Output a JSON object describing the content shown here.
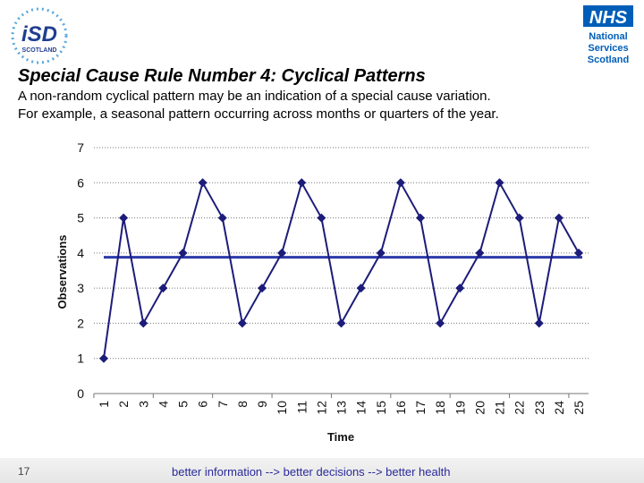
{
  "header": {
    "isd_logo_text": "iSD",
    "isd_logo_sub": "SCOTLAND",
    "nhs_logo_text": "NHS",
    "nhs_logo_sub": [
      "National",
      "Services",
      "Scotland"
    ],
    "nhs_blue": "#005EB8"
  },
  "slide": {
    "title": "Special Cause Rule Number 4:  Cyclical Patterns",
    "description_line1": "A non-random cyclical pattern may be an indication of a special cause variation.",
    "description_line2": "For example, a seasonal pattern occurring across months or quarters of the year."
  },
  "chart_data": {
    "type": "line",
    "xlabel": "Time",
    "ylabel": "Observations",
    "ylim": [
      0,
      7
    ],
    "yticks": [
      0,
      1,
      2,
      3,
      4,
      5,
      6,
      7
    ],
    "x": [
      1,
      2,
      3,
      4,
      5,
      6,
      7,
      8,
      9,
      10,
      11,
      12,
      13,
      14,
      15,
      16,
      17,
      18,
      19,
      20,
      21,
      22,
      23,
      24,
      25
    ],
    "series": [
      {
        "values": [
          1,
          5,
          2,
          3,
          4,
          6,
          5,
          2,
          3,
          4,
          6,
          5,
          2,
          3,
          4,
          6,
          5,
          2,
          3,
          4,
          6,
          5,
          2,
          5,
          4
        ],
        "color": "#1c1c7a"
      }
    ],
    "reference_line": {
      "value": 3.88,
      "color": "#2b3aa8"
    },
    "grid": true,
    "legend": "none"
  },
  "footer": {
    "page_number": "17",
    "tagline": "better information --> better decisions --> better health"
  }
}
